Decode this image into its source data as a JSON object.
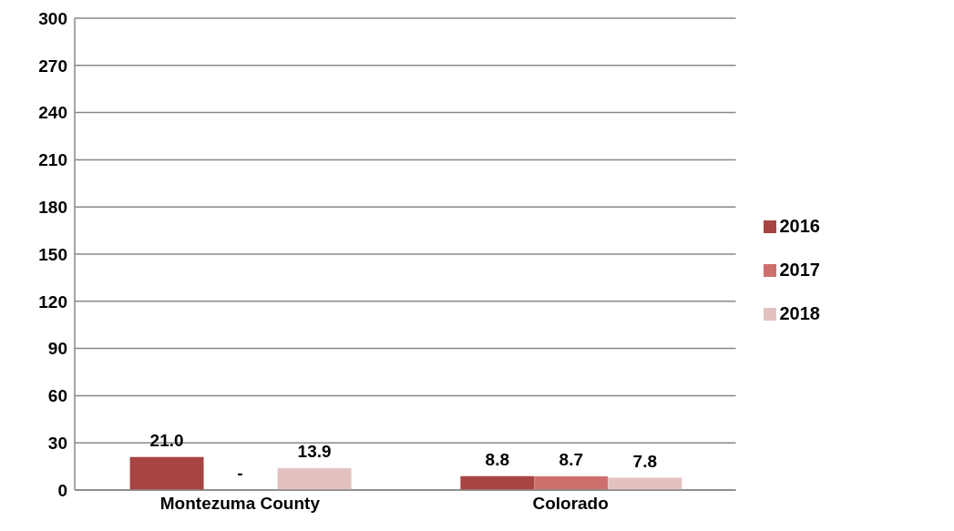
{
  "chart_data": {
    "type": "bar",
    "categories": [
      "Montezuma County",
      "Colorado"
    ],
    "series": [
      {
        "name": "2016",
        "color": "#a84442",
        "values": [
          21.0,
          8.8
        ],
        "value_labels": [
          "21.0",
          "8.8"
        ]
      },
      {
        "name": "2017",
        "color": "#cd706d",
        "values": [
          null,
          8.7
        ],
        "value_labels": [
          "-",
          "8.7"
        ]
      },
      {
        "name": "2018",
        "color": "#e4c1c1",
        "values": [
          13.9,
          7.8
        ],
        "value_labels": [
          "13.9",
          "7.8"
        ]
      }
    ],
    "ylim": [
      0,
      300
    ],
    "yticks": [
      0,
      30,
      60,
      90,
      120,
      150,
      180,
      210,
      240,
      270,
      300
    ],
    "grid": "y",
    "legend": "right"
  }
}
